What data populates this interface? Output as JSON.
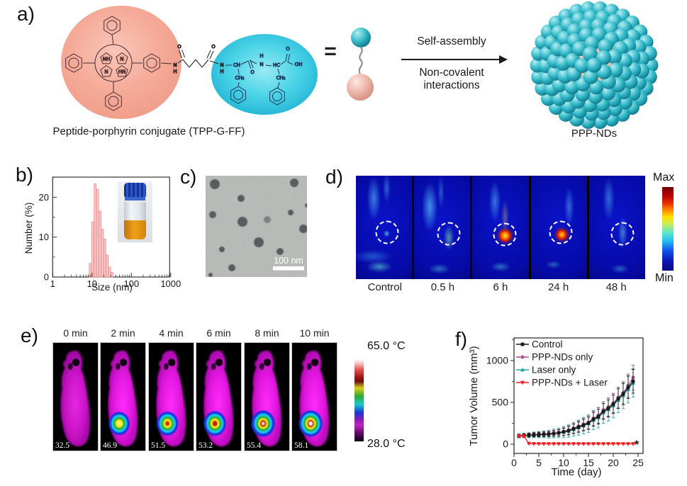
{
  "figure_labels": {
    "a": "a)",
    "b": "b)",
    "c": "c)",
    "d": "d)",
    "e": "e)",
    "f": "f)"
  },
  "panel_a": {
    "caption": "Peptide-porphyrin conjugate (TPP-G-FF)",
    "equals": "=",
    "arrow_label_top": "Self-assembly",
    "arrow_label_bottom": [
      "Non-covalent",
      "interactions"
    ],
    "product_label": "PPP-NDs",
    "porphyrin_atoms": [
      "NH",
      "N",
      "N",
      "HN"
    ],
    "linker_atoms": [
      "O",
      "O",
      "N",
      "H",
      "N",
      "H"
    ],
    "peptide_atoms": [
      "CH",
      "CH₂",
      "O",
      "H",
      "N",
      "HC",
      "CH₂",
      "O",
      "OH"
    ],
    "colors": {
      "porphyrin_blob": "#f5a997",
      "peptide_blob": "#2cc4e0",
      "sphere_teal": "#1a9cb0",
      "sphere_pink": "#ecb3a6"
    }
  },
  "panel_c": {
    "scale_bar_label": "100 nm"
  },
  "panel_d": {
    "frame_labels": [
      "Control",
      "0.5 h",
      "6 h",
      "24 h",
      "48 h"
    ],
    "colorbar_max": "Max",
    "colorbar_min": "Min"
  },
  "panel_e": {
    "time_labels": [
      "0 min",
      "2 min",
      "4 min",
      "6 min",
      "8 min",
      "10 min"
    ],
    "spot_temperatures": [
      "32.5",
      "46.9",
      "51.5",
      "53.2",
      "55.4",
      "58.1"
    ],
    "colorbar_max": "65.0 °C",
    "colorbar_min": "28.0 °C"
  },
  "chart_data": [
    {
      "id": "size_distribution",
      "type": "bar",
      "xscale": "log",
      "xlabel": "Size (nm)",
      "ylabel": "Number (%)",
      "xlim": [
        1,
        1000
      ],
      "ylim": [
        0,
        25
      ],
      "xticks": [
        1,
        10,
        100,
        1000
      ],
      "yticks": [
        0,
        10,
        20
      ],
      "grid": false,
      "bar_color": "#fbcaca",
      "bar_edge": "#ef8e8e",
      "sizes_nm": [
        9.0,
        10.4,
        12.0,
        13.8,
        15.9,
        18.3,
        21.1,
        24.3,
        28.0,
        32.2
      ],
      "number_percent": [
        3.4,
        13.8,
        23.4,
        22.0,
        16.5,
        12.0,
        9.5,
        5.5,
        2.5,
        1.2
      ]
    },
    {
      "id": "tumor_growth",
      "type": "line",
      "xlabel": "Time (day)",
      "ylabel": "Tumor Volume (mm³)",
      "xlim": [
        0,
        26
      ],
      "ylim": [
        -110,
        1275
      ],
      "xticks": [
        0,
        5,
        10,
        15,
        20,
        25
      ],
      "yticks": [
        0,
        500,
        1000
      ],
      "grid": false,
      "legend_position": "top-left",
      "annotation": "*",
      "x_days": [
        1,
        2,
        3,
        4,
        5,
        6,
        7,
        8,
        9,
        10,
        11,
        12,
        13,
        14,
        15,
        16,
        17,
        18,
        19,
        20,
        21,
        22,
        23,
        24
      ],
      "series": [
        {
          "name": "Control",
          "color": "#1a1a1a",
          "marker": "square",
          "values": [
            100,
            104,
            108,
            112,
            114,
            117,
            120,
            127,
            135,
            148,
            162,
            183,
            205,
            228,
            252,
            298,
            330,
            392,
            428,
            478,
            545,
            600,
            680,
            752
          ],
          "errors": [
            18,
            20,
            22,
            24,
            26,
            28,
            30,
            34,
            38,
            44,
            50,
            56,
            62,
            68,
            74,
            82,
            88,
            96,
            102,
            110,
            118,
            126,
            134,
            142
          ]
        },
        {
          "name": "PPP-NDs only",
          "color": "#a9538b",
          "marker": "circle",
          "values": [
            98,
            103,
            110,
            114,
            117,
            120,
            124,
            131,
            140,
            152,
            168,
            190,
            214,
            238,
            262,
            308,
            344,
            408,
            444,
            492,
            558,
            614,
            700,
            798
          ],
          "errors": [
            20,
            22,
            24,
            26,
            28,
            30,
            33,
            36,
            40,
            46,
            52,
            58,
            65,
            72,
            78,
            86,
            92,
            100,
            108,
            116,
            124,
            132,
            140,
            148
          ]
        },
        {
          "name": "Laser only",
          "color": "#22a7a7",
          "marker": "triangle-up",
          "values": [
            101,
            105,
            107,
            111,
            115,
            118,
            121,
            128,
            136,
            146,
            158,
            178,
            199,
            222,
            247,
            288,
            318,
            378,
            416,
            462,
            528,
            582,
            658,
            732
          ],
          "errors": [
            24,
            27,
            30,
            34,
            38,
            42,
            46,
            52,
            58,
            66,
            74,
            82,
            90,
            98,
            106,
            114,
            122,
            130,
            138,
            146,
            152,
            158,
            164,
            170
          ]
        },
        {
          "name": "PPP-NDs + Laser",
          "color": "#ee2024",
          "marker": "triangle-down",
          "values": [
            100,
            97,
            8,
            5,
            4,
            4,
            4,
            4,
            4,
            4,
            4,
            4,
            4,
            4,
            4,
            4,
            4,
            4,
            4,
            4,
            4,
            4,
            4,
            4
          ],
          "errors": [
            14,
            12,
            4,
            3,
            3,
            3,
            3,
            3,
            3,
            3,
            3,
            3,
            3,
            3,
            3,
            3,
            3,
            3,
            3,
            3,
            3,
            3,
            3,
            3
          ]
        }
      ]
    }
  ]
}
